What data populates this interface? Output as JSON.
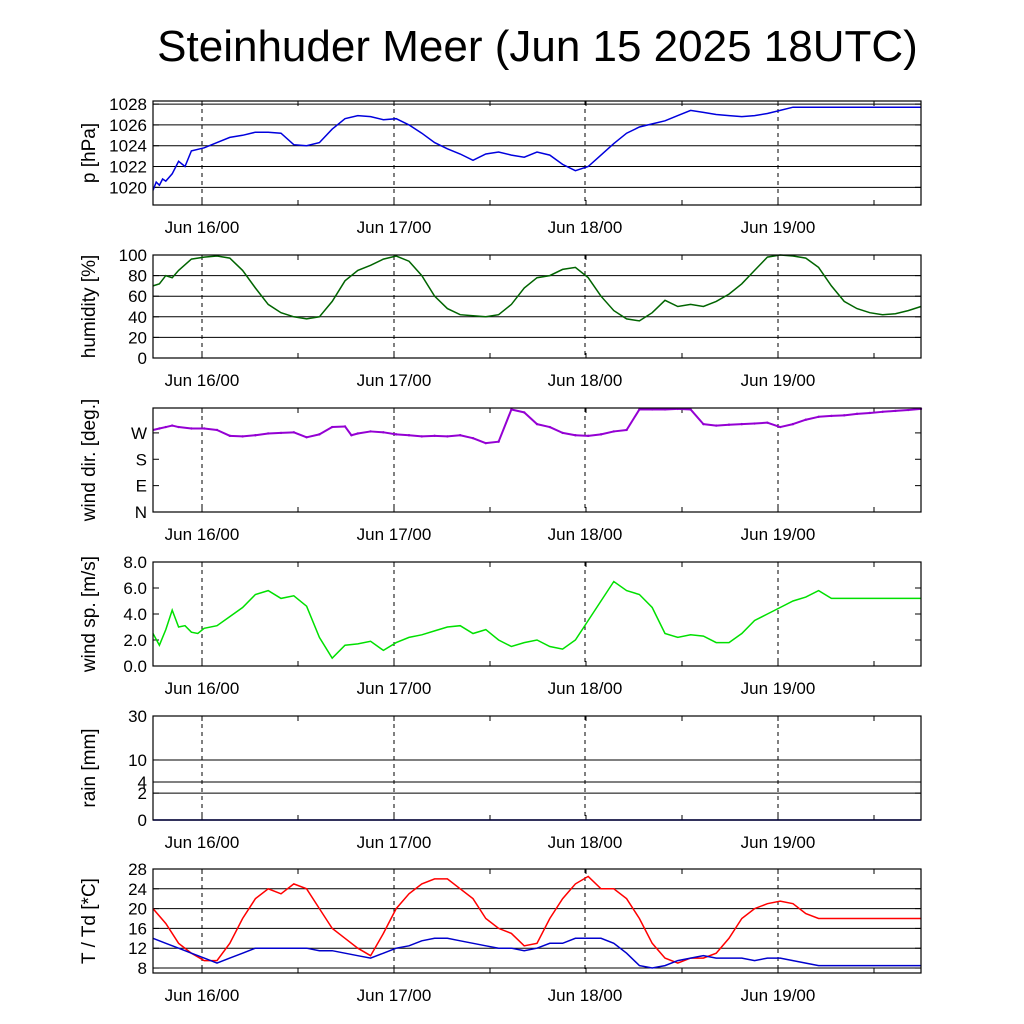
{
  "title": "Steinhuder Meer (Jun 15 2025 18UTC)",
  "colors": {
    "pressure": "#0000dd",
    "humidity": "#006400",
    "wind_dir": "#9400d3",
    "wind_speed": "#00e000",
    "rain": "#0000cc",
    "temperature": "#ff0000",
    "dewpoint": "#0000cc"
  },
  "chart_data": [
    {
      "id": "pressure",
      "type": "line",
      "ylabel": "p [hPa]",
      "ylim": [
        1018.3,
        1028.3
      ],
      "yticks": [
        {
          "v": 1020,
          "label": "1020"
        },
        {
          "v": 1022,
          "label": "1022"
        },
        {
          "v": 1024,
          "label": "1024"
        },
        {
          "v": 1026,
          "label": "1026"
        },
        {
          "v": 1028,
          "label": "1028"
        }
      ],
      "gridlines": [
        1020,
        1022,
        1024,
        1026,
        1028
      ],
      "xticks": [
        "Jun 16/00",
        "Jun 17/00",
        "Jun 18/00",
        "Jun 19/00"
      ],
      "series": [
        {
          "color": "pressure",
          "x": [
            0,
            0.5,
            1,
            1.5,
            2,
            3,
            4,
            5,
            6,
            8,
            10,
            12,
            14,
            16,
            18,
            20,
            22,
            24,
            26,
            28,
            30,
            32,
            34,
            36,
            38,
            40,
            42,
            44,
            46,
            48,
            50,
            52,
            54,
            56,
            58,
            60,
            62,
            64,
            66,
            68,
            70,
            72,
            74,
            76,
            78,
            80,
            82,
            84,
            86,
            88,
            90,
            92,
            94,
            96,
            98,
            100,
            102,
            104,
            106,
            108,
            110,
            112,
            114,
            116,
            118,
            120
          ],
          "y": [
            1019.7,
            1020.5,
            1020.2,
            1020.8,
            1020.6,
            1021.3,
            1022.5,
            1022.0,
            1023.5,
            1023.8,
            1024.3,
            1024.8,
            1025.0,
            1025.3,
            1025.3,
            1025.2,
            1024.1,
            1024.0,
            1024.3,
            1025.6,
            1026.6,
            1026.9,
            1026.8,
            1026.5,
            1026.6,
            1026.0,
            1025.2,
            1024.3,
            1023.7,
            1023.2,
            1022.6,
            1023.2,
            1023.4,
            1023.1,
            1022.9,
            1023.4,
            1023.1,
            1022.2,
            1021.6,
            1022.0,
            1023.1,
            1024.2,
            1025.2,
            1025.8,
            1026.1,
            1026.4,
            1026.9,
            1027.4,
            1027.2,
            1027.0,
            1026.9,
            1026.8,
            1026.9,
            1027.1,
            1027.4,
            1027.7,
            1027.7,
            1027.7,
            1027.7,
            1027.7,
            1027.7,
            1027.7,
            1027.7,
            1027.7,
            1027.7,
            1027.7
          ]
        }
      ]
    },
    {
      "id": "humidity",
      "type": "line",
      "ylabel": "humidity [%]",
      "ylim": [
        0,
        100
      ],
      "yticks": [
        {
          "v": 0,
          "label": "0"
        },
        {
          "v": 20,
          "label": "20"
        },
        {
          "v": 40,
          "label": "40"
        },
        {
          "v": 60,
          "label": "60"
        },
        {
          "v": 80,
          "label": "80"
        },
        {
          "v": 100,
          "label": "100"
        }
      ],
      "gridlines": [
        20,
        40,
        60,
        80
      ],
      "xticks": [
        "Jun 16/00",
        "Jun 17/00",
        "Jun 18/00",
        "Jun 19/00"
      ],
      "series": [
        {
          "color": "humidity",
          "x": [
            0,
            1,
            2,
            3,
            4,
            6,
            8,
            10,
            12,
            14,
            16,
            18,
            20,
            22,
            24,
            26,
            28,
            30,
            32,
            34,
            36,
            38,
            40,
            42,
            44,
            46,
            48,
            50,
            52,
            54,
            56,
            58,
            60,
            62,
            64,
            66,
            68,
            70,
            72,
            74,
            76,
            78,
            80,
            82,
            84,
            86,
            88,
            90,
            92,
            94,
            96,
            98,
            100,
            102,
            104,
            106,
            108,
            110,
            112,
            114,
            116,
            118,
            120
          ],
          "y": [
            70,
            72,
            80,
            78,
            85,
            96,
            98,
            99,
            97,
            85,
            68,
            52,
            44,
            40,
            38,
            40,
            55,
            75,
            85,
            90,
            96,
            99,
            94,
            80,
            60,
            48,
            42,
            41,
            40,
            42,
            52,
            68,
            78,
            80,
            86,
            88,
            78,
            60,
            46,
            38,
            36,
            44,
            56,
            50,
            52,
            50,
            55,
            62,
            72,
            85,
            98,
            100,
            99,
            97,
            88,
            70,
            55,
            48,
            44,
            42,
            43,
            46,
            50
          ]
        }
      ]
    },
    {
      "id": "wind_dir",
      "type": "scatter",
      "ylabel": "wind dir. [deg.]",
      "ylim": [
        0,
        355
      ],
      "yticks": [
        {
          "v": 0,
          "label": "N"
        },
        {
          "v": 90,
          "label": "E"
        },
        {
          "v": 180,
          "label": "S"
        },
        {
          "v": 270,
          "label": "W"
        }
      ],
      "gridlines": [],
      "xticks": [
        "Jun 16/00",
        "Jun 17/00",
        "Jun 18/00",
        "Jun 19/00"
      ],
      "series": [
        {
          "color": "wind_dir",
          "x": [
            0,
            1,
            2,
            3,
            4,
            6,
            8,
            10,
            12,
            14,
            16,
            18,
            20,
            22,
            24,
            26,
            28,
            30,
            31,
            32,
            34,
            36,
            38,
            40,
            42,
            44,
            46,
            48,
            50,
            52,
            54,
            56,
            58,
            60,
            62,
            64,
            66,
            68,
            70,
            72,
            74,
            76,
            78,
            80,
            82,
            84,
            86,
            88,
            90,
            92,
            94,
            96,
            98,
            100,
            102,
            104,
            106,
            108,
            110,
            112,
            114,
            116,
            118,
            120
          ],
          "y": [
            280,
            285,
            290,
            295,
            290,
            285,
            285,
            280,
            260,
            258,
            262,
            268,
            270,
            272,
            255,
            265,
            290,
            292,
            262,
            268,
            275,
            272,
            265,
            262,
            258,
            260,
            258,
            262,
            252,
            235,
            240,
            350,
            340,
            300,
            290,
            270,
            262,
            260,
            265,
            275,
            280,
            350,
            350,
            350,
            352,
            350,
            300,
            295,
            298,
            300,
            302,
            305,
            290,
            300,
            315,
            325,
            328,
            330,
            335,
            338,
            342,
            345,
            348,
            352
          ]
        }
      ]
    },
    {
      "id": "wind_speed",
      "type": "line",
      "ylabel": "wind sp. [m/s]",
      "ylim": [
        0,
        8
      ],
      "yticks": [
        {
          "v": 0,
          "label": "0.0"
        },
        {
          "v": 2,
          "label": "2.0"
        },
        {
          "v": 4,
          "label": "4.0"
        },
        {
          "v": 6,
          "label": "6.0"
        },
        {
          "v": 8,
          "label": "8.0"
        }
      ],
      "gridlines": [],
      "xticks": [
        "Jun 16/00",
        "Jun 17/00",
        "Jun 18/00",
        "Jun 19/00"
      ],
      "series": [
        {
          "color": "wind_speed",
          "x": [
            0,
            1,
            2,
            3,
            4,
            5,
            6,
            7,
            8,
            10,
            12,
            14,
            16,
            18,
            20,
            22,
            24,
            26,
            28,
            30,
            32,
            34,
            36,
            38,
            40,
            42,
            44,
            46,
            48,
            50,
            52,
            54,
            56,
            58,
            60,
            62,
            64,
            66,
            68,
            70,
            72,
            74,
            76,
            78,
            80,
            82,
            84,
            86,
            88,
            90,
            92,
            94,
            96,
            98,
            100,
            102,
            104,
            106,
            108,
            110,
            112,
            114,
            116,
            118,
            120
          ],
          "y": [
            2.5,
            1.6,
            2.8,
            4.3,
            3.0,
            3.1,
            2.6,
            2.5,
            2.9,
            3.1,
            3.8,
            4.5,
            5.5,
            5.8,
            5.2,
            5.4,
            4.6,
            2.2,
            0.6,
            1.6,
            1.7,
            1.9,
            1.2,
            1.8,
            2.2,
            2.4,
            2.7,
            3.0,
            3.1,
            2.5,
            2.8,
            2.0,
            1.5,
            1.8,
            2.0,
            1.5,
            1.3,
            2.0,
            3.5,
            5.0,
            6.5,
            5.8,
            5.5,
            4.5,
            2.5,
            2.2,
            2.4,
            2.3,
            1.8,
            1.8,
            2.5,
            3.5,
            4.0,
            4.5,
            5.0,
            5.3,
            5.8,
            5.2,
            5.2,
            5.2,
            5.2,
            5.2,
            5.2,
            5.2,
            5.2
          ]
        }
      ]
    },
    {
      "id": "rain",
      "type": "line",
      "ylabel": "rain [mm]",
      "scale": "sqrt",
      "ylim": [
        0,
        30
      ],
      "yticks": [
        {
          "v": 0,
          "label": "0"
        },
        {
          "v": 2,
          "label": "2"
        },
        {
          "v": 4,
          "label": "4"
        },
        {
          "v": 10,
          "label": "10"
        },
        {
          "v": 30,
          "label": "30"
        }
      ],
      "gridlines": [
        2,
        4,
        10,
        30
      ],
      "xticks": [
        "Jun 16/00",
        "Jun 17/00",
        "Jun 18/00",
        "Jun 19/00"
      ],
      "series": [
        {
          "color": "rain",
          "x": [
            0,
            120
          ],
          "y": [
            0,
            0
          ]
        }
      ]
    },
    {
      "id": "temperature",
      "type": "line",
      "ylabel": "T / Td [*C]",
      "ylim": [
        7,
        28
      ],
      "yticks": [
        {
          "v": 8,
          "label": "8"
        },
        {
          "v": 12,
          "label": "12"
        },
        {
          "v": 16,
          "label": "16"
        },
        {
          "v": 20,
          "label": "20"
        },
        {
          "v": 24,
          "label": "24"
        },
        {
          "v": 28,
          "label": "28"
        }
      ],
      "gridlines": [
        8,
        12,
        16,
        20,
        24,
        28
      ],
      "xticks": [
        "Jun 16/00",
        "Jun 17/00",
        "Jun 18/00",
        "Jun 19/00"
      ],
      "series": [
        {
          "color": "temperature",
          "x": [
            0,
            2,
            4,
            6,
            8,
            10,
            12,
            14,
            16,
            18,
            20,
            22,
            24,
            26,
            28,
            30,
            32,
            34,
            36,
            38,
            40,
            42,
            44,
            46,
            48,
            50,
            52,
            54,
            56,
            58,
            60,
            62,
            64,
            66,
            68,
            70,
            72,
            74,
            76,
            78,
            80,
            82,
            84,
            86,
            88,
            90,
            92,
            94,
            96,
            98,
            100,
            102,
            104,
            106,
            108,
            110,
            112,
            114,
            116,
            118,
            120
          ],
          "y": [
            20,
            17,
            13,
            11,
            9.5,
            9.5,
            13,
            18,
            22,
            24,
            23,
            25,
            24,
            20,
            16,
            14,
            12,
            10.5,
            15,
            20,
            23,
            25,
            26,
            26,
            24,
            22,
            18,
            16,
            15,
            12.5,
            13,
            18,
            22,
            25,
            26.5,
            24,
            24,
            22,
            18,
            13,
            10,
            9,
            10,
            10,
            11,
            14,
            18,
            20,
            21,
            21.5,
            21,
            19,
            18,
            18,
            18,
            18,
            18,
            18,
            18,
            18,
            18
          ]
        },
        {
          "color": "dewpoint",
          "x": [
            0,
            2,
            4,
            6,
            8,
            10,
            12,
            14,
            16,
            18,
            20,
            22,
            24,
            26,
            28,
            30,
            32,
            34,
            36,
            38,
            40,
            42,
            44,
            46,
            48,
            50,
            52,
            54,
            56,
            58,
            60,
            62,
            64,
            66,
            68,
            70,
            72,
            74,
            76,
            78,
            80,
            82,
            84,
            86,
            88,
            90,
            92,
            94,
            96,
            98,
            100,
            102,
            104,
            106,
            108,
            110,
            112,
            114,
            116,
            118,
            120
          ],
          "y": [
            14,
            13,
            12,
            11,
            10,
            9,
            10,
            11,
            12,
            12,
            12,
            12,
            12,
            11.5,
            11.5,
            11,
            10.5,
            10,
            11,
            12,
            12.5,
            13.5,
            14,
            14,
            13.5,
            13,
            12.5,
            12,
            12,
            11.5,
            12,
            13,
            13,
            14,
            14,
            14,
            13,
            11,
            8.5,
            8,
            8.5,
            9.5,
            10,
            10.5,
            10,
            10,
            10,
            9.5,
            10,
            10,
            9.5,
            9,
            8.5,
            8.5,
            8.5,
            8.5,
            8.5,
            8.5,
            8.5,
            8.5,
            8.5
          ]
        }
      ]
    }
  ]
}
